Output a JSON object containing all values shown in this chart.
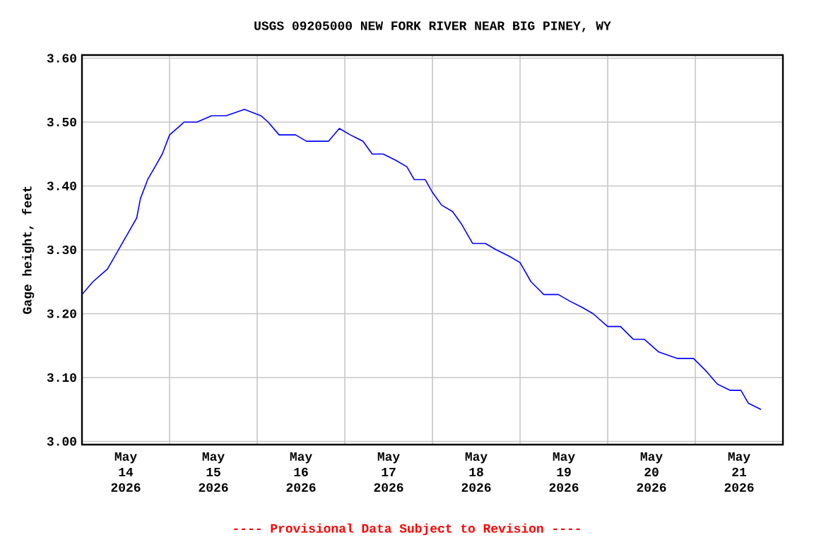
{
  "chart_data": {
    "type": "line",
    "title": "USGS 09205000 NEW FORK RIVER NEAR BIG PINEY, WY",
    "ylabel": "Gage height, feet",
    "annotations": [
      "---- Provisional Data Subject to Revision ----"
    ],
    "xlim": [
      "2026-05-14T00:00",
      "2026-05-22T00:00"
    ],
    "xticks": [
      {
        "value": "2026-05-15T00:00",
        "label": null
      },
      {
        "value": "2026-05-16T00:00",
        "label": null
      },
      {
        "value": "2026-05-17T00:00",
        "label": null
      },
      {
        "value": "2026-05-18T00:00",
        "label": null
      },
      {
        "value": "2026-05-19T00:00",
        "label": null
      },
      {
        "value": "2026-05-20T00:00",
        "label": null
      },
      {
        "value": "2026-05-21T00:00",
        "label": null
      },
      {
        "value": "2026-05-14T12:00",
        "label": "May 14 2026"
      },
      {
        "value": "2026-05-15T12:00",
        "label": "May 15 2026"
      },
      {
        "value": "2026-05-16T12:00",
        "label": "May 16 2026"
      },
      {
        "value": "2026-05-17T12:00",
        "label": "May 17 2026"
      },
      {
        "value": "2026-05-18T12:00",
        "label": "May 18 2026"
      },
      {
        "value": "2026-05-19T12:00",
        "label": "May 19 2026"
      },
      {
        "value": "2026-05-20T12:00",
        "label": "May 20 2026"
      },
      {
        "value": "2026-05-21T12:00",
        "label": "May 21 2026"
      }
    ],
    "ylim": [
      2.995,
      3.605
    ],
    "yticks": [
      {
        "value": 3.0,
        "label": "3.00"
      },
      {
        "value": 3.1,
        "label": "3.10"
      },
      {
        "value": 3.2,
        "label": "3.20"
      },
      {
        "value": 3.3,
        "label": "3.30"
      },
      {
        "value": 3.4,
        "label": "3.40"
      },
      {
        "value": 3.5,
        "label": "3.50"
      },
      {
        "value": 3.6,
        "label": "3.60"
      }
    ],
    "grid": true,
    "marker": "none",
    "line_style": "solid",
    "series": [
      {
        "color": "#0000ff",
        "x": [
          "2026-05-14T00:00",
          "2026-05-14T03:00",
          "2026-05-14T05:00",
          "2026-05-14T07:00",
          "2026-05-14T09:00",
          "2026-05-14T11:00",
          "2026-05-14T13:00",
          "2026-05-14T15:00",
          "2026-05-14T16:00",
          "2026-05-14T18:00",
          "2026-05-14T20:00",
          "2026-05-14T22:00",
          "2026-05-15T00:00",
          "2026-05-15T02:00",
          "2026-05-15T04:00",
          "2026-05-15T07:30",
          "2026-05-15T11:30",
          "2026-05-15T15:30",
          "2026-05-15T20:30",
          "2026-05-16T01:00",
          "2026-05-16T03:00",
          "2026-05-16T06:00",
          "2026-05-16T10:30",
          "2026-05-16T13:30",
          "2026-05-16T17:00",
          "2026-05-16T19:30",
          "2026-05-16T22:30",
          "2026-05-17T01:30",
          "2026-05-17T05:00",
          "2026-05-17T07:30",
          "2026-05-17T10:30",
          "2026-05-17T14:00",
          "2026-05-17T17:00",
          "2026-05-17T19:00",
          "2026-05-17T22:00",
          "2026-05-18T00:00",
          "2026-05-18T02:30",
          "2026-05-18T05:30",
          "2026-05-18T08:00",
          "2026-05-18T11:00",
          "2026-05-18T14:30",
          "2026-05-18T17:30",
          "2026-05-18T21:00",
          "2026-05-19T00:00",
          "2026-05-19T03:00",
          "2026-05-19T06:30",
          "2026-05-19T10:30",
          "2026-05-19T13:30",
          "2026-05-19T17:00",
          "2026-05-19T20:00",
          "2026-05-20T00:00",
          "2026-05-20T03:30",
          "2026-05-20T07:00",
          "2026-05-20T10:00",
          "2026-05-20T14:00",
          "2026-05-20T19:00",
          "2026-05-20T23:30",
          "2026-05-21T03:00",
          "2026-05-21T06:00",
          "2026-05-21T09:30",
          "2026-05-21T12:30",
          "2026-05-21T14:30",
          "2026-05-21T18:00"
        ],
        "values": [
          3.23,
          3.25,
          3.26,
          3.27,
          3.29,
          3.31,
          3.33,
          3.35,
          3.38,
          3.41,
          3.43,
          3.45,
          3.48,
          3.49,
          3.5,
          3.5,
          3.51,
          3.51,
          3.52,
          3.51,
          3.5,
          3.48,
          3.48,
          3.47,
          3.47,
          3.47,
          3.49,
          3.48,
          3.47,
          3.45,
          3.45,
          3.44,
          3.43,
          3.41,
          3.41,
          3.39,
          3.37,
          3.36,
          3.34,
          3.31,
          3.31,
          3.3,
          3.29,
          3.28,
          3.25,
          3.23,
          3.23,
          3.22,
          3.21,
          3.2,
          3.18,
          3.18,
          3.16,
          3.16,
          3.14,
          3.13,
          3.13,
          3.11,
          3.09,
          3.08,
          3.08,
          3.06,
          3.05
        ]
      }
    ]
  }
}
